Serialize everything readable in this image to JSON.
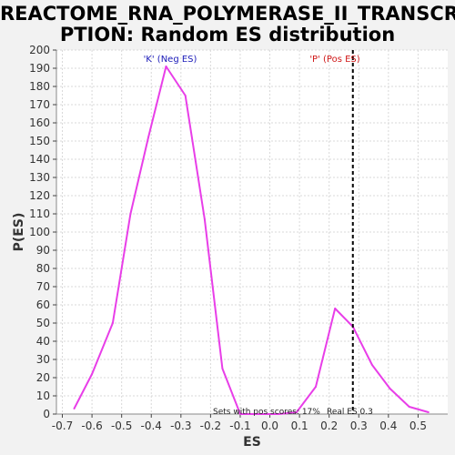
{
  "header": {
    "title_line1": "REACTOME_RNA_POLYMERASE_II_TRANSCRI",
    "title_line2": "PTION: Random ES distribution"
  },
  "chart_data": {
    "type": "line",
    "title": "REACTOME_RNA_POLYMERASE_II_TRANSCRIPTION: Random ES distribution",
    "xlabel": "ES",
    "ylabel": "P(ES)",
    "xlim": [
      -0.72,
      0.6
    ],
    "ylim": [
      0,
      200
    ],
    "x_ticks": [
      -0.7,
      -0.6,
      -0.5,
      -0.4,
      -0.3,
      -0.2,
      -0.1,
      0.0,
      0.1,
      0.2,
      0.3,
      0.4,
      0.5
    ],
    "x_tick_labels": [
      "-0.7",
      "-0.6",
      "-0.5",
      "-0.4",
      "-0.3",
      "-0.2",
      "-0.1",
      "0.0",
      "0.1",
      "0.2",
      "0.3",
      "0.4",
      "0.5"
    ],
    "y_ticks": [
      0,
      10,
      20,
      30,
      40,
      50,
      60,
      70,
      80,
      90,
      100,
      110,
      120,
      130,
      140,
      150,
      160,
      170,
      180,
      190,
      200
    ],
    "grid": true,
    "series": [
      {
        "color": "#e83ee8",
        "x": [
          -0.66,
          -0.6,
          -0.53,
          -0.47,
          -0.41,
          -0.35,
          -0.285,
          -0.22,
          -0.16,
          -0.1,
          -0.035,
          0.03,
          0.09,
          0.155,
          0.22,
          0.28,
          0.345,
          0.405,
          0.47,
          0.535
        ],
        "y": [
          3,
          22,
          50,
          110,
          152,
          191,
          175,
          107,
          25,
          0,
          0,
          0,
          1,
          15,
          58,
          48,
          27,
          14,
          4,
          1
        ]
      }
    ],
    "real_es": 0.28,
    "annotations": {
      "neg_label": "'K' (Neg ES)",
      "pos_label": "'P' (Pos ES)",
      "sets_with_pos": "Sets with pos scores: 17%",
      "real_es_label": "Real ES 0.3"
    },
    "colors": {
      "line": "#e83ee8",
      "real_es_line": "#000000",
      "neg_label": "#1a1ab8",
      "pos_label": "#d01818",
      "grid": "#d9d9d9",
      "plot_bg": "#ffffff"
    }
  }
}
